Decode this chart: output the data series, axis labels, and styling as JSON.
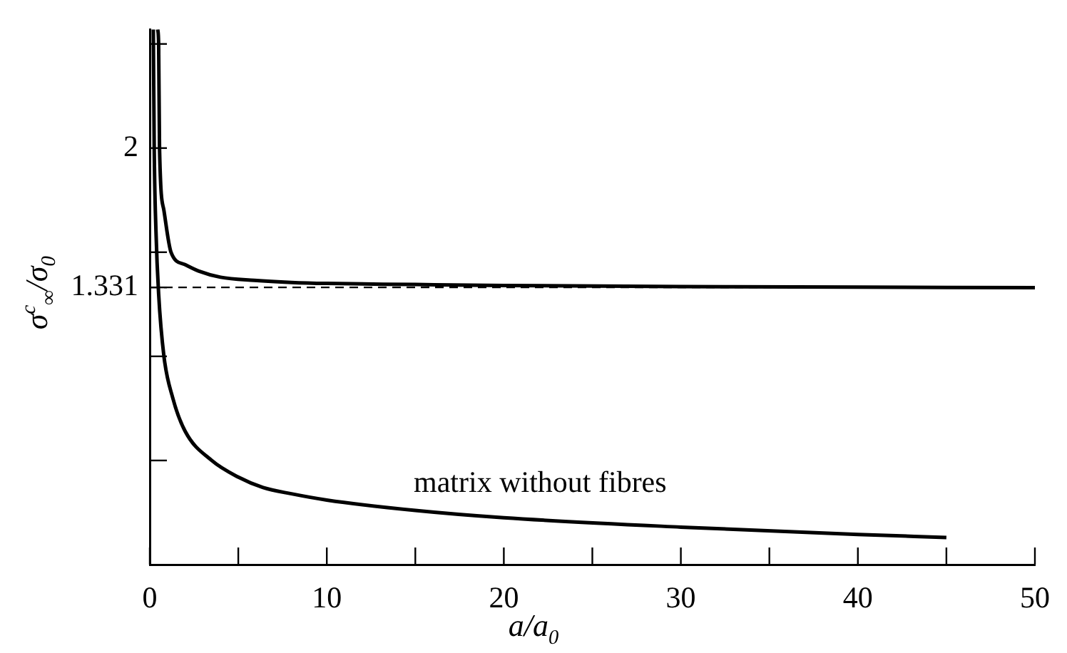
{
  "chart_data": {
    "type": "line",
    "xlabel": "a/a$_{0}$",
    "ylabel": "σ$^{c}$$_{∞}$/σ$_{0}$",
    "xlim": [
      0,
      50
    ],
    "ylim": [
      0,
      2.57
    ],
    "xticks": [
      0,
      {
        "value": 5,
        "label": null
      },
      10,
      {
        "value": 15,
        "label": null
      },
      20,
      {
        "value": 25,
        "label": null
      },
      30,
      {
        "value": 35,
        "label": null
      },
      40,
      {
        "value": 45,
        "label": null
      },
      50
    ],
    "yticks": [
      {
        "value": 0.5,
        "label": null
      },
      {
        "value": 1,
        "label": null
      },
      1.331,
      {
        "value": 1.5,
        "label": null
      },
      2,
      {
        "value": 2.5,
        "label": null
      }
    ],
    "grid": false,
    "legend": false,
    "line_style": "solid",
    "series": [
      {
        "color": "#000000",
        "x": [
          0.45,
          0.5,
          0.55,
          0.8,
          1.2,
          2,
          2.75,
          4,
          5.9,
          8,
          10,
          15,
          20,
          30,
          40,
          50
        ],
        "values": [
          2.57,
          2.5,
          2.0,
          1.7,
          1.5,
          1.44,
          1.41,
          1.38,
          1.365,
          1.355,
          1.35,
          1.345,
          1.34,
          1.335,
          1.332,
          1.33
        ]
      },
      {
        "color": "#000000",
        "x": [
          0.2,
          0.25,
          0.35,
          0.5,
          0.8,
          1.3,
          2,
          3.5,
          5,
          6.4,
          8,
          10,
          15,
          20,
          30,
          40,
          45
        ],
        "values": [
          2.57,
          2.0,
          1.6,
          1.3,
          1.0,
          0.8,
          0.64,
          0.5,
          0.42,
          0.37,
          0.34,
          0.31,
          0.26,
          0.225,
          0.18,
          0.145,
          0.13
        ]
      }
    ],
    "ref_lines": [
      {
        "axis": "y",
        "value": 1.331,
        "line_style": "dashed",
        "color": "#000000"
      }
    ],
    "annotations": [
      "matrix without fibres"
    ]
  }
}
